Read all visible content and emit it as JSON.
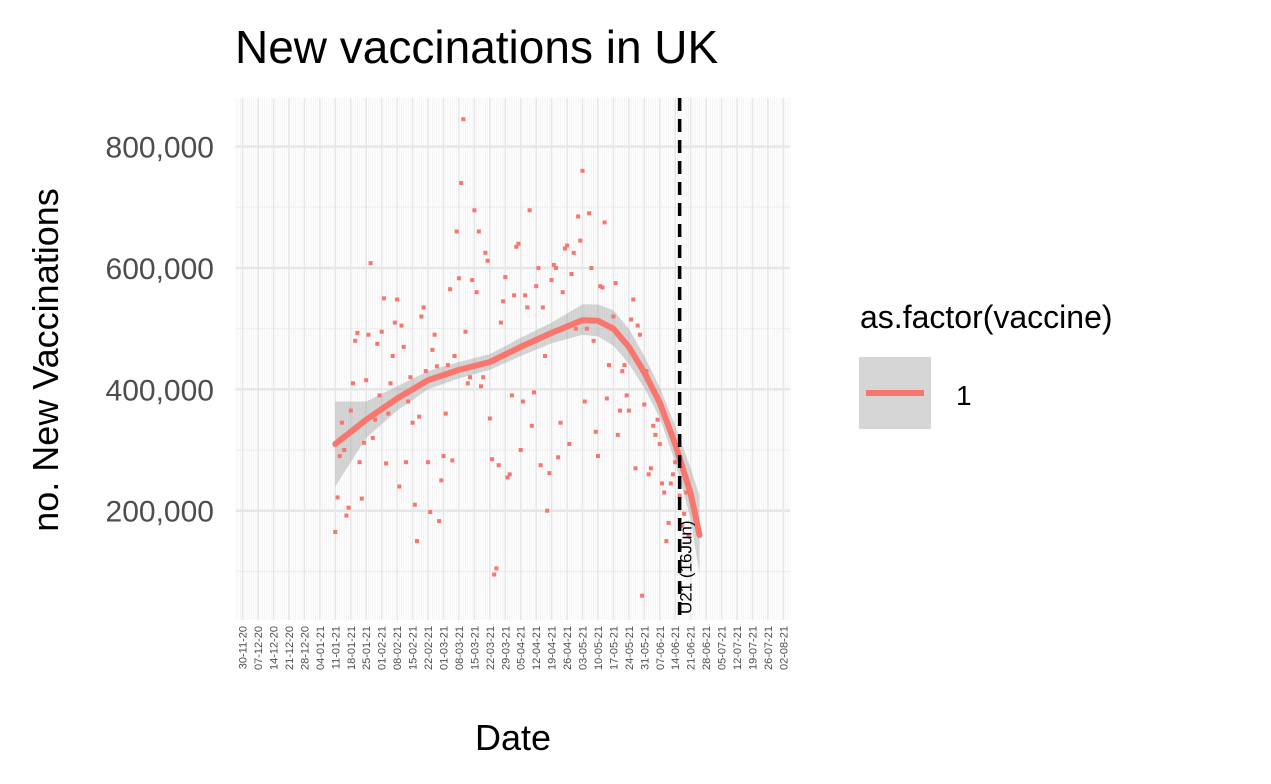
{
  "chart_data": {
    "type": "scatter",
    "title": "New vaccinations in UK",
    "xlabel": "Date",
    "ylabel": "no. New Vaccinations",
    "xlim": [
      "2020-11-27",
      "2021-08-05"
    ],
    "ylim": [
      20000,
      880000
    ],
    "yticks": [
      200000,
      400000,
      600000,
      800000
    ],
    "ytick_labels": [
      "200,000",
      "400,000",
      "600,000",
      "800,000"
    ],
    "xtick_labels": [
      "30-11-20",
      "07-12-20",
      "14-12-20",
      "21-12-20",
      "28-12-20",
      "04-01-21",
      "11-01-21",
      "18-01-21",
      "25-01-21",
      "01-02-21",
      "08-02-21",
      "15-02-21",
      "22-02-21",
      "01-03-21",
      "08-03-21",
      "15-03-21",
      "22-03-21",
      "29-03-21",
      "05-04-21",
      "12-04-21",
      "19-04-21",
      "26-04-21",
      "03-05-21",
      "10-05-21",
      "17-05-21",
      "24-05-21",
      "31-05-21",
      "07-06-21",
      "14-06-21",
      "21-06-21",
      "28-06-21",
      "05-07-21",
      "12-07-21",
      "19-07-21",
      "26-07-21",
      "02-08-21"
    ],
    "xtick_dates": [
      "2020-11-30",
      "2020-12-07",
      "2020-12-14",
      "2020-12-21",
      "2020-12-28",
      "2021-01-04",
      "2021-01-11",
      "2021-01-18",
      "2021-01-25",
      "2021-02-01",
      "2021-02-08",
      "2021-02-15",
      "2021-02-22",
      "2021-03-01",
      "2021-03-08",
      "2021-03-15",
      "2021-03-22",
      "2021-03-29",
      "2021-04-05",
      "2021-04-12",
      "2021-04-19",
      "2021-04-26",
      "2021-05-03",
      "2021-05-10",
      "2021-05-17",
      "2021-05-24",
      "2021-05-31",
      "2021-06-07",
      "2021-06-14",
      "2021-06-21",
      "2021-06-28",
      "2021-07-05",
      "2021-07-12",
      "2021-07-19",
      "2021-07-26",
      "2021-08-02"
    ],
    "grid": true,
    "legend": {
      "title": "as.factor(vaccine)",
      "entries": [
        "1"
      ],
      "position": "right"
    },
    "series": [
      {
        "name": "1",
        "color": "#F8766D",
        "points": [
          [
            "2021-01-11",
            165000
          ],
          [
            "2021-01-12",
            222000
          ],
          [
            "2021-01-13",
            290000
          ],
          [
            "2021-01-14",
            345000
          ],
          [
            "2021-01-15",
            300000
          ],
          [
            "2021-01-16",
            192000
          ],
          [
            "2021-01-17",
            205000
          ],
          [
            "2021-01-18",
            365000
          ],
          [
            "2021-01-19",
            410000
          ],
          [
            "2021-01-20",
            480000
          ],
          [
            "2021-01-21",
            493000
          ],
          [
            "2021-01-22",
            280000
          ],
          [
            "2021-01-23",
            220000
          ],
          [
            "2021-01-24",
            312000
          ],
          [
            "2021-01-25",
            415000
          ],
          [
            "2021-01-26",
            490000
          ],
          [
            "2021-01-27",
            608000
          ],
          [
            "2021-01-28",
            320000
          ],
          [
            "2021-01-29",
            350000
          ],
          [
            "2021-01-30",
            475000
          ],
          [
            "2021-01-31",
            390000
          ],
          [
            "2021-02-01",
            495000
          ],
          [
            "2021-02-02",
            550000
          ],
          [
            "2021-02-03",
            278000
          ],
          [
            "2021-02-04",
            360000
          ],
          [
            "2021-02-05",
            410000
          ],
          [
            "2021-02-06",
            455000
          ],
          [
            "2021-02-07",
            510000
          ],
          [
            "2021-02-08",
            548000
          ],
          [
            "2021-02-09",
            240000
          ],
          [
            "2021-02-10",
            505000
          ],
          [
            "2021-02-11",
            470000
          ],
          [
            "2021-02-12",
            280000
          ],
          [
            "2021-02-13",
            380000
          ],
          [
            "2021-02-14",
            420000
          ],
          [
            "2021-02-15",
            345000
          ],
          [
            "2021-02-16",
            210000
          ],
          [
            "2021-02-17",
            150000
          ],
          [
            "2021-02-18",
            355000
          ],
          [
            "2021-02-19",
            520000
          ],
          [
            "2021-02-20",
            535000
          ],
          [
            "2021-02-21",
            430000
          ],
          [
            "2021-02-22",
            280000
          ],
          [
            "2021-02-23",
            198000
          ],
          [
            "2021-02-24",
            465000
          ],
          [
            "2021-02-25",
            490000
          ],
          [
            "2021-02-26",
            438000
          ],
          [
            "2021-02-27",
            183000
          ],
          [
            "2021-02-28",
            250000
          ],
          [
            "2021-03-01",
            290000
          ],
          [
            "2021-03-02",
            360000
          ],
          [
            "2021-03-03",
            440000
          ],
          [
            "2021-03-04",
            565000
          ],
          [
            "2021-03-05",
            283000
          ],
          [
            "2021-03-06",
            455000
          ],
          [
            "2021-03-07",
            660000
          ],
          [
            "2021-03-08",
            583000
          ],
          [
            "2021-03-09",
            740000
          ],
          [
            "2021-03-10",
            845000
          ],
          [
            "2021-03-11",
            495000
          ],
          [
            "2021-03-12",
            410000
          ],
          [
            "2021-03-13",
            420000
          ],
          [
            "2021-03-14",
            580000
          ],
          [
            "2021-03-15",
            695000
          ],
          [
            "2021-03-16",
            560000
          ],
          [
            "2021-03-17",
            660000
          ],
          [
            "2021-03-18",
            405000
          ],
          [
            "2021-03-19",
            420000
          ],
          [
            "2021-03-20",
            625000
          ],
          [
            "2021-03-21",
            612000
          ],
          [
            "2021-03-22",
            352000
          ],
          [
            "2021-03-23",
            285000
          ],
          [
            "2021-03-24",
            95000
          ],
          [
            "2021-03-25",
            105000
          ],
          [
            "2021-03-26",
            275000
          ],
          [
            "2021-03-27",
            510000
          ],
          [
            "2021-03-28",
            545000
          ],
          [
            "2021-03-29",
            585000
          ],
          [
            "2021-03-30",
            255000
          ],
          [
            "2021-03-31",
            260000
          ],
          [
            "2021-04-01",
            390000
          ],
          [
            "2021-04-02",
            555000
          ],
          [
            "2021-04-03",
            635000
          ],
          [
            "2021-04-04",
            640000
          ],
          [
            "2021-04-05",
            300000
          ],
          [
            "2021-04-06",
            380000
          ],
          [
            "2021-04-07",
            555000
          ],
          [
            "2021-04-08",
            535000
          ],
          [
            "2021-04-09",
            695000
          ],
          [
            "2021-04-10",
            340000
          ],
          [
            "2021-04-11",
            395000
          ],
          [
            "2021-04-12",
            570000
          ],
          [
            "2021-04-13",
            600000
          ],
          [
            "2021-04-14",
            275000
          ],
          [
            "2021-04-15",
            535000
          ],
          [
            "2021-04-16",
            455000
          ],
          [
            "2021-04-17",
            200000
          ],
          [
            "2021-04-18",
            262000
          ],
          [
            "2021-04-19",
            580000
          ],
          [
            "2021-04-20",
            605000
          ],
          [
            "2021-04-21",
            600000
          ],
          [
            "2021-04-22",
            288000
          ],
          [
            "2021-04-23",
            345000
          ],
          [
            "2021-04-24",
            560000
          ],
          [
            "2021-04-25",
            632000
          ],
          [
            "2021-04-26",
            637000
          ],
          [
            "2021-04-27",
            310000
          ],
          [
            "2021-04-28",
            590000
          ],
          [
            "2021-04-29",
            625000
          ],
          [
            "2021-04-30",
            500000
          ],
          [
            "2021-05-01",
            685000
          ],
          [
            "2021-05-02",
            645000
          ],
          [
            "2021-05-03",
            760000
          ],
          [
            "2021-05-04",
            380000
          ],
          [
            "2021-05-05",
            500000
          ],
          [
            "2021-05-06",
            690000
          ],
          [
            "2021-05-07",
            600000
          ],
          [
            "2021-05-08",
            480000
          ],
          [
            "2021-05-09",
            330000
          ],
          [
            "2021-05-10",
            290000
          ],
          [
            "2021-05-11",
            570000
          ],
          [
            "2021-05-12",
            568000
          ],
          [
            "2021-05-13",
            675000
          ],
          [
            "2021-05-14",
            385000
          ],
          [
            "2021-05-15",
            440000
          ],
          [
            "2021-05-16",
            500000
          ],
          [
            "2021-05-17",
            520000
          ],
          [
            "2021-05-18",
            575000
          ],
          [
            "2021-05-19",
            325000
          ],
          [
            "2021-05-20",
            365000
          ],
          [
            "2021-05-21",
            430000
          ],
          [
            "2021-05-22",
            440000
          ],
          [
            "2021-05-23",
            390000
          ],
          [
            "2021-05-24",
            365000
          ],
          [
            "2021-05-25",
            515000
          ],
          [
            "2021-05-26",
            548000
          ],
          [
            "2021-05-27",
            270000
          ],
          [
            "2021-05-28",
            505000
          ],
          [
            "2021-05-29",
            490000
          ],
          [
            "2021-05-30",
            60000
          ],
          [
            "2021-05-31",
            375000
          ],
          [
            "2021-06-01",
            430000
          ],
          [
            "2021-06-02",
            260000
          ],
          [
            "2021-06-03",
            270000
          ],
          [
            "2021-06-04",
            340000
          ],
          [
            "2021-06-05",
            325000
          ],
          [
            "2021-06-06",
            350000
          ],
          [
            "2021-06-07",
            310000
          ],
          [
            "2021-06-08",
            245000
          ],
          [
            "2021-06-09",
            230000
          ],
          [
            "2021-06-10",
            150000
          ],
          [
            "2021-06-11",
            180000
          ],
          [
            "2021-06-12",
            245000
          ],
          [
            "2021-06-13",
            260000
          ],
          [
            "2021-06-14",
            280000
          ],
          [
            "2021-06-15",
            295000
          ],
          [
            "2021-06-16",
            225000
          ],
          [
            "2021-06-17",
            175000
          ],
          [
            "2021-06-18",
            195000
          ],
          [
            "2021-06-19",
            230000
          ],
          [
            "2021-06-20",
            160000
          ]
        ],
        "smooth": [
          [
            "2021-01-11",
            310000
          ],
          [
            "2021-01-25",
            350000
          ],
          [
            "2021-02-08",
            385000
          ],
          [
            "2021-02-22",
            415000
          ],
          [
            "2021-03-08",
            432000
          ],
          [
            "2021-03-22",
            445000
          ],
          [
            "2021-04-05",
            470000
          ],
          [
            "2021-04-19",
            493000
          ],
          [
            "2021-05-03",
            514000
          ],
          [
            "2021-05-10",
            513000
          ],
          [
            "2021-05-17",
            500000
          ],
          [
            "2021-05-24",
            470000
          ],
          [
            "2021-05-31",
            428000
          ],
          [
            "2021-06-07",
            378000
          ],
          [
            "2021-06-14",
            310000
          ],
          [
            "2021-06-21",
            228000
          ],
          [
            "2021-06-25",
            160000
          ]
        ],
        "band_upper": [
          [
            "2021-01-11",
            380000
          ],
          [
            "2021-01-25",
            380000
          ],
          [
            "2021-02-08",
            405000
          ],
          [
            "2021-02-22",
            430000
          ],
          [
            "2021-03-08",
            445000
          ],
          [
            "2021-03-22",
            458000
          ],
          [
            "2021-04-05",
            485000
          ],
          [
            "2021-04-19",
            510000
          ],
          [
            "2021-05-03",
            540000
          ],
          [
            "2021-05-10",
            540000
          ],
          [
            "2021-05-17",
            530000
          ],
          [
            "2021-05-24",
            500000
          ],
          [
            "2021-05-31",
            455000
          ],
          [
            "2021-06-07",
            403000
          ],
          [
            "2021-06-14",
            340000
          ],
          [
            "2021-06-21",
            270000
          ],
          [
            "2021-06-25",
            225000
          ]
        ],
        "band_lower": [
          [
            "2021-01-11",
            240000
          ],
          [
            "2021-01-25",
            320000
          ],
          [
            "2021-02-08",
            365000
          ],
          [
            "2021-02-22",
            400000
          ],
          [
            "2021-03-08",
            418000
          ],
          [
            "2021-03-22",
            432000
          ],
          [
            "2021-04-05",
            455000
          ],
          [
            "2021-04-19",
            476000
          ],
          [
            "2021-05-03",
            490000
          ],
          [
            "2021-05-10",
            487000
          ],
          [
            "2021-05-17",
            472000
          ],
          [
            "2021-05-24",
            442000
          ],
          [
            "2021-05-31",
            402000
          ],
          [
            "2021-06-07",
            353000
          ],
          [
            "2021-06-14",
            280000
          ],
          [
            "2021-06-21",
            186000
          ],
          [
            "2021-06-25",
            95000
          ]
        ]
      }
    ],
    "vline": {
      "x": "2021-06-16",
      "style": "dashed",
      "color": "#000000",
      "label": "U21 (16Jun)"
    }
  }
}
